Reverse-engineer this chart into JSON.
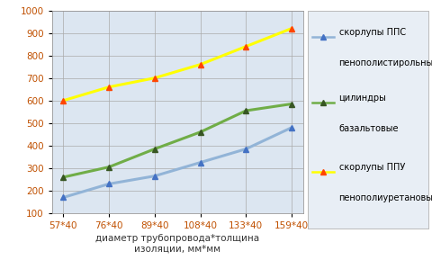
{
  "categories": [
    "57*40",
    "76*40",
    "89*40",
    "108*40",
    "133*40",
    "159*40"
  ],
  "series": [
    {
      "label": "скорлупы ППС\nпенополистирольные",
      "values": [
        170,
        230,
        265,
        325,
        385,
        480
      ],
      "line_color": "#92b4d7",
      "marker_color": "#4472c4"
    },
    {
      "label": "цилиндры\nбазальтовые",
      "values": [
        260,
        305,
        385,
        460,
        555,
        585
      ],
      "line_color": "#70ad47",
      "marker_color": "#375623"
    },
    {
      "label": "скорлупы ППУ\nпенополиуретановые",
      "values": [
        600,
        660,
        700,
        760,
        840,
        920
      ],
      "line_color": "#ffff00",
      "marker_color": "#ff4500"
    }
  ],
  "xlabel": "диаметр трубопровода*толщина\nизоляции, мм*мм",
  "ylim": [
    100,
    1000
  ],
  "yticks": [
    100,
    200,
    300,
    400,
    500,
    600,
    700,
    800,
    900,
    1000
  ],
  "grid_color": "#aaaaaa",
  "plot_bg": "#dce6f1",
  "outer_bg": "#ffffff",
  "legend_bg": "#e8eef5",
  "tick_color": "#c05000",
  "legend_fontsize": 7.0,
  "xlabel_fontsize": 7.5,
  "tick_fontsize": 7.5,
  "line_width": 2.2,
  "marker_size": 5
}
